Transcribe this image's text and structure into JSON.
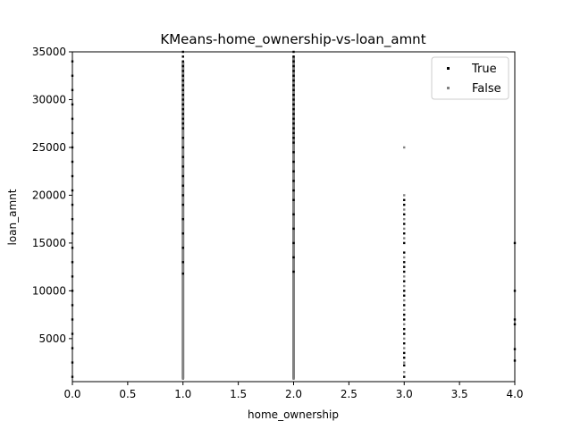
{
  "chart_data": {
    "type": "scatter",
    "title": "KMeans-home_ownership-vs-loan_amnt",
    "xlabel": "home_ownership",
    "ylabel": "loan_amnt",
    "xlim": [
      0.0,
      4.0
    ],
    "ylim": [
      500,
      35000
    ],
    "xticks": [
      "0.0",
      "0.5",
      "1.0",
      "1.5",
      "2.0",
      "2.5",
      "3.0",
      "3.5",
      "4.0"
    ],
    "yticks": [
      "5000",
      "10000",
      "15000",
      "20000",
      "25000",
      "30000",
      "35000"
    ],
    "legend_position": "top-right",
    "grid": false,
    "colors": {
      "true_series": "#000000",
      "false_series": "#808080"
    },
    "series": [
      {
        "name": "True",
        "points": [
          [
            0,
            1000
          ],
          [
            0,
            2500
          ],
          [
            0,
            4000
          ],
          [
            0,
            5500
          ],
          [
            0,
            7000
          ],
          [
            0,
            8500
          ],
          [
            0,
            10000
          ],
          [
            0,
            11500
          ],
          [
            0,
            13000
          ],
          [
            0,
            14500
          ],
          [
            0,
            16000
          ],
          [
            0,
            17500
          ],
          [
            0,
            19000
          ],
          [
            0,
            20500
          ],
          [
            0,
            22000
          ],
          [
            0,
            23500
          ],
          [
            0,
            25000
          ],
          [
            0,
            26500
          ],
          [
            0,
            28000
          ],
          [
            0,
            29500
          ],
          [
            0,
            31000
          ],
          [
            0,
            32500
          ],
          [
            0,
            34000
          ],
          [
            1,
            11800
          ],
          [
            1,
            13000
          ],
          [
            1,
            14500
          ],
          [
            1,
            16000
          ],
          [
            1,
            17500
          ],
          [
            1,
            19000
          ],
          [
            1,
            20000
          ],
          [
            1,
            21000
          ],
          [
            1,
            22000
          ],
          [
            1,
            23000
          ],
          [
            1,
            24000
          ],
          [
            1,
            25000
          ],
          [
            1,
            26000
          ],
          [
            1,
            27000
          ],
          [
            1,
            27500
          ],
          [
            1,
            28000
          ],
          [
            1,
            28500
          ],
          [
            1,
            29000
          ],
          [
            1,
            29500
          ],
          [
            1,
            30000
          ],
          [
            1,
            30500
          ],
          [
            1,
            31000
          ],
          [
            1,
            31500
          ],
          [
            1,
            32000
          ],
          [
            1,
            32500
          ],
          [
            1,
            33000
          ],
          [
            1,
            33500
          ],
          [
            1,
            34000
          ],
          [
            1,
            34500
          ],
          [
            1,
            35000
          ],
          [
            2,
            12000
          ],
          [
            2,
            13500
          ],
          [
            2,
            15000
          ],
          [
            2,
            16500
          ],
          [
            2,
            18000
          ],
          [
            2,
            19500
          ],
          [
            2,
            20500
          ],
          [
            2,
            21500
          ],
          [
            2,
            22500
          ],
          [
            2,
            23500
          ],
          [
            2,
            24500
          ],
          [
            2,
            25500
          ],
          [
            2,
            26000
          ],
          [
            2,
            26500
          ],
          [
            2,
            27000
          ],
          [
            2,
            27500
          ],
          [
            2,
            28000
          ],
          [
            2,
            28500
          ],
          [
            2,
            29000
          ],
          [
            2,
            29500
          ],
          [
            2,
            30000
          ],
          [
            2,
            30500
          ],
          [
            2,
            31000
          ],
          [
            2,
            31500
          ],
          [
            2,
            32000
          ],
          [
            2,
            32500
          ],
          [
            2,
            33000
          ],
          [
            2,
            33500
          ],
          [
            2,
            34000
          ],
          [
            2,
            34500
          ],
          [
            2,
            35000
          ],
          [
            3,
            1000
          ],
          [
            3,
            2200
          ],
          [
            3,
            3000
          ],
          [
            3,
            3500
          ],
          [
            3,
            4500
          ],
          [
            3,
            5500
          ],
          [
            3,
            6000
          ],
          [
            3,
            7000
          ],
          [
            3,
            7500
          ],
          [
            3,
            8500
          ],
          [
            3,
            9500
          ],
          [
            3,
            10000
          ],
          [
            3,
            11000
          ],
          [
            3,
            12000
          ],
          [
            3,
            12500
          ],
          [
            3,
            13000
          ],
          [
            3,
            14000
          ],
          [
            3,
            15000
          ],
          [
            3,
            16000
          ],
          [
            3,
            17000
          ],
          [
            3,
            18000
          ],
          [
            3,
            19000
          ],
          [
            3,
            19500
          ],
          [
            4,
            2700
          ],
          [
            4,
            3900
          ],
          [
            4,
            6500
          ],
          [
            4,
            7000
          ],
          [
            4,
            10000
          ],
          [
            4,
            15000
          ]
        ]
      },
      {
        "name": "False",
        "points": [
          [
            1,
            800
          ],
          [
            1,
            1500
          ],
          [
            1,
            2200
          ],
          [
            1,
            3000
          ],
          [
            1,
            3800
          ],
          [
            1,
            4500
          ],
          [
            1,
            5200
          ],
          [
            1,
            6000
          ],
          [
            1,
            6800
          ],
          [
            1,
            7500
          ],
          [
            1,
            8200
          ],
          [
            1,
            9000
          ],
          [
            1,
            9800
          ],
          [
            1,
            10500
          ],
          [
            1,
            11200
          ],
          [
            1,
            12000
          ],
          [
            1,
            12800
          ],
          [
            1,
            13500
          ],
          [
            1,
            14200
          ],
          [
            1,
            15000
          ],
          [
            1,
            15800
          ],
          [
            1,
            16500
          ],
          [
            1,
            17200
          ],
          [
            1,
            18000
          ],
          [
            1,
            18800
          ],
          [
            1,
            19500
          ],
          [
            1,
            20200
          ],
          [
            1,
            21000
          ],
          [
            1,
            21800
          ],
          [
            1,
            22500
          ],
          [
            1,
            23200
          ],
          [
            1,
            24000
          ],
          [
            1,
            24800
          ],
          [
            1,
            25500
          ],
          [
            1,
            26200
          ],
          [
            1,
            27000
          ],
          [
            1,
            28000
          ],
          [
            1,
            29000
          ],
          [
            1,
            30000
          ],
          [
            1,
            31000
          ],
          [
            1,
            32000
          ],
          [
            1,
            33000
          ],
          [
            1,
            34000
          ],
          [
            2,
            800
          ],
          [
            2,
            1500
          ],
          [
            2,
            2200
          ],
          [
            2,
            3000
          ],
          [
            2,
            3800
          ],
          [
            2,
            4500
          ],
          [
            2,
            5200
          ],
          [
            2,
            6000
          ],
          [
            2,
            6800
          ],
          [
            2,
            7500
          ],
          [
            2,
            8200
          ],
          [
            2,
            9000
          ],
          [
            2,
            9800
          ],
          [
            2,
            10500
          ],
          [
            2,
            11200
          ],
          [
            2,
            12000
          ],
          [
            2,
            12800
          ],
          [
            2,
            13500
          ],
          [
            2,
            14200
          ],
          [
            2,
            15000
          ],
          [
            2,
            15800
          ],
          [
            2,
            16500
          ],
          [
            2,
            17200
          ],
          [
            2,
            18000
          ],
          [
            2,
            18800
          ],
          [
            2,
            19500
          ],
          [
            2,
            20200
          ],
          [
            2,
            21000
          ],
          [
            2,
            21800
          ],
          [
            2,
            22500
          ],
          [
            2,
            23200
          ],
          [
            2,
            24000
          ],
          [
            2,
            24800
          ],
          [
            2,
            25500
          ],
          [
            2,
            26500
          ],
          [
            2,
            27500
          ],
          [
            2,
            28500
          ],
          [
            2,
            29500
          ],
          [
            2,
            30500
          ],
          [
            2,
            31500
          ],
          [
            2,
            32500
          ],
          [
            2,
            33500
          ],
          [
            2,
            34500
          ],
          [
            3,
            1500
          ],
          [
            3,
            2500
          ],
          [
            3,
            4000
          ],
          [
            3,
            5000
          ],
          [
            3,
            6500
          ],
          [
            3,
            8000
          ],
          [
            3,
            9000
          ],
          [
            3,
            10500
          ],
          [
            3,
            11500
          ],
          [
            3,
            13500
          ],
          [
            3,
            15500
          ],
          [
            3,
            16500
          ],
          [
            3,
            17500
          ],
          [
            3,
            18500
          ],
          [
            3,
            20000
          ],
          [
            3,
            25000
          ]
        ]
      }
    ]
  }
}
